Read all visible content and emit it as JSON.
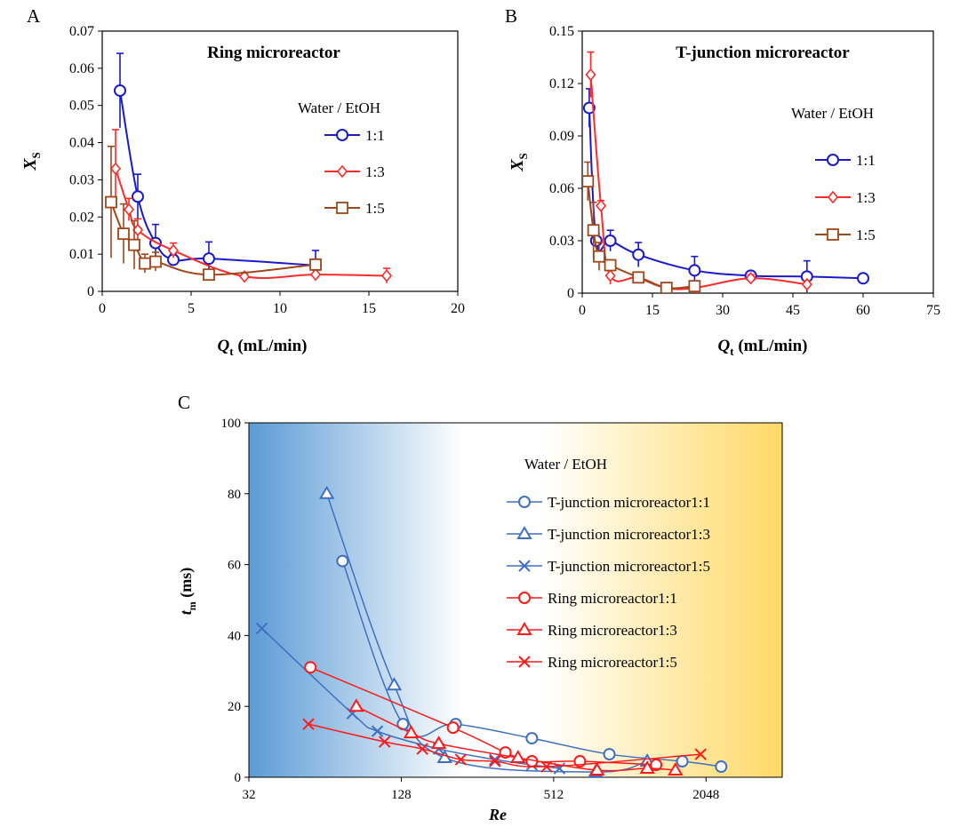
{
  "chart_data": [
    {
      "panel": "A",
      "type": "line",
      "title": "Ring microreactor",
      "xlabel_main": "Q",
      "xlabel_sub": "t",
      "xlabel_unit": " (mL/min)",
      "ylabel_main": "X",
      "ylabel_sub": "S",
      "xlim": [
        0,
        20
      ],
      "ylim": [
        0,
        0.07
      ],
      "xticks": [
        "0",
        "5",
        "10",
        "15",
        "20"
      ],
      "xtick_values": [
        0,
        5,
        10,
        15,
        20
      ],
      "yticks": [
        "0",
        "0.01",
        "0.02",
        "0.03",
        "0.04",
        "0.05",
        "0.06",
        "0.07"
      ],
      "ytick_values": [
        0,
        0.01,
        0.02,
        0.03,
        0.04,
        0.05,
        0.06,
        0.07
      ],
      "legend_title": "Water / EtOH",
      "series": [
        {
          "name": "1:1",
          "color": "#1a1acd",
          "marker": "circle",
          "x": [
            1,
            2,
            3,
            4,
            6,
            12
          ],
          "y": [
            0.054,
            0.0255,
            0.013,
            0.0085,
            0.0088,
            0.007
          ],
          "err": [
            0.01,
            0.006,
            0.005,
            0.0015,
            0.0045,
            0.004
          ]
        },
        {
          "name": "1:3",
          "color": "#ff2a2a",
          "marker": "diamond",
          "x": [
            0.75,
            1.5,
            2,
            4,
            8,
            12,
            16
          ],
          "y": [
            0.033,
            0.022,
            0.0165,
            0.011,
            0.004,
            0.0045,
            0.0042
          ],
          "err": [
            0.0105,
            0.003,
            0.003,
            0.002,
            0.001,
            0.0015,
            0.002
          ]
        },
        {
          "name": "1:5",
          "color": "#a0461a",
          "marker": "square",
          "x": [
            0.5,
            1.2,
            1.8,
            2.4,
            3,
            6,
            12
          ],
          "y": [
            0.024,
            0.0155,
            0.0125,
            0.0075,
            0.008,
            0.0045,
            0.0072
          ],
          "err": [
            0.015,
            0.008,
            0.0065,
            0.0025,
            0.0025,
            0.001,
            0.0015
          ]
        }
      ]
    },
    {
      "panel": "B",
      "type": "line",
      "title": "T-junction microreactor",
      "xlabel_main": "Q",
      "xlabel_sub": "t",
      "xlabel_unit": " (mL/min)",
      "ylabel_main": "X",
      "ylabel_sub": "S",
      "xlim": [
        0,
        75
      ],
      "ylim": [
        0,
        0.15
      ],
      "xticks": [
        "0",
        "15",
        "30",
        "45",
        "60",
        "75"
      ],
      "xtick_values": [
        0,
        15,
        30,
        45,
        60,
        75
      ],
      "yticks": [
        "0",
        "0.03",
        "0.06",
        "0.09",
        "0.12",
        "0.15"
      ],
      "ytick_values": [
        0,
        0.03,
        0.06,
        0.09,
        0.12,
        0.15
      ],
      "legend_title": "Water / EtOH",
      "series": [
        {
          "name": "1:1",
          "color": "#1a1acd",
          "marker": "circle",
          "x": [
            1.5,
            3,
            6,
            12,
            24,
            36,
            48,
            60
          ],
          "y": [
            0.106,
            0.03,
            0.03,
            0.022,
            0.013,
            0.01,
            0.0095,
            0.0085
          ],
          "err": [
            0.011,
            0.004,
            0.006,
            0.007,
            0.008,
            0.002,
            0.009,
            0.001
          ]
        },
        {
          "name": "1:3",
          "color": "#ff2a2a",
          "marker": "diamond",
          "x": [
            1.8,
            4,
            6,
            12,
            18,
            24,
            36,
            48
          ],
          "y": [
            0.125,
            0.05,
            0.01,
            0.009,
            0.003,
            0.003,
            0.0085,
            0.005
          ],
          "err": [
            0.013,
            0.003,
            0.005,
            0.002,
            0.001,
            0.001,
            0.002,
            0.002
          ]
        },
        {
          "name": "1:5",
          "color": "#a0461a",
          "marker": "square",
          "x": [
            1.2,
            2.4,
            3.6,
            6,
            12,
            18,
            24
          ],
          "y": [
            0.064,
            0.036,
            0.021,
            0.016,
            0.009,
            0.003,
            0.004
          ],
          "err": [
            0.011,
            0.016,
            0.008,
            0.003,
            0.002,
            0.001,
            0.001
          ]
        }
      ]
    },
    {
      "panel": "C",
      "type": "line",
      "xscale": "log2",
      "xlabel": "Re",
      "ylabel_main": "t",
      "ylabel_sub": "m",
      "ylabel_unit": " (ms)",
      "xlim": [
        32,
        4096
      ],
      "ylim": [
        0,
        100
      ],
      "xticks": [
        "32",
        "128",
        "512",
        "2048"
      ],
      "xtick_values": [
        32,
        128,
        512,
        2048
      ],
      "yticks": [
        "0",
        "20",
        "40",
        "60",
        "80",
        "100"
      ],
      "ytick_values": [
        0,
        20,
        40,
        60,
        80,
        100
      ],
      "legend_title": "Water / EtOH",
      "series": [
        {
          "name": "T-junction microreactor1:1",
          "color": "#3f6fc2",
          "marker": "circle",
          "x": [
            75,
            130,
            210,
            420,
            850,
            1650,
            2350
          ],
          "y": [
            61,
            15,
            15,
            11,
            6.5,
            4.5,
            3
          ]
        },
        {
          "name": "T-junction microreactor1:3",
          "color": "#3f6fc2",
          "marker": "triangle",
          "x": [
            65,
            120,
            190,
            750,
            1200
          ],
          "y": [
            80,
            26,
            5.5,
            1.5,
            4.5
          ]
        },
        {
          "name": "T-junction microreactor1:5",
          "color": "#3f6fc2",
          "marker": "x",
          "x": [
            36,
            82,
            103,
            180,
            300,
            420,
            540
          ],
          "y": [
            42,
            18,
            13,
            8,
            5,
            3.5,
            2.5
          ]
        },
        {
          "name": "Ring microreactor1:1",
          "color": "#ff1a1a",
          "marker": "circle",
          "x": [
            56,
            205,
            330,
            420,
            650,
            1300
          ],
          "y": [
            31,
            14,
            7,
            4.5,
            4.5,
            3.5
          ]
        },
        {
          "name": "Ring microreactor1:3",
          "color": "#ff1a1a",
          "marker": "triangle",
          "x": [
            85,
            140,
            180,
            370,
            760,
            1200,
            1550
          ],
          "y": [
            20,
            12.5,
            9.5,
            5.5,
            2,
            2.5,
            2
          ]
        },
        {
          "name": "Ring microreactor1:5",
          "color": "#ff1a1a",
          "marker": "x",
          "x": [
            55,
            110,
            155,
            220,
            300,
            480,
            1950
          ],
          "y": [
            15,
            10,
            8,
            5,
            4.5,
            3,
            6.5
          ]
        }
      ]
    }
  ],
  "panel_labels": [
    "A",
    "B",
    "C"
  ]
}
